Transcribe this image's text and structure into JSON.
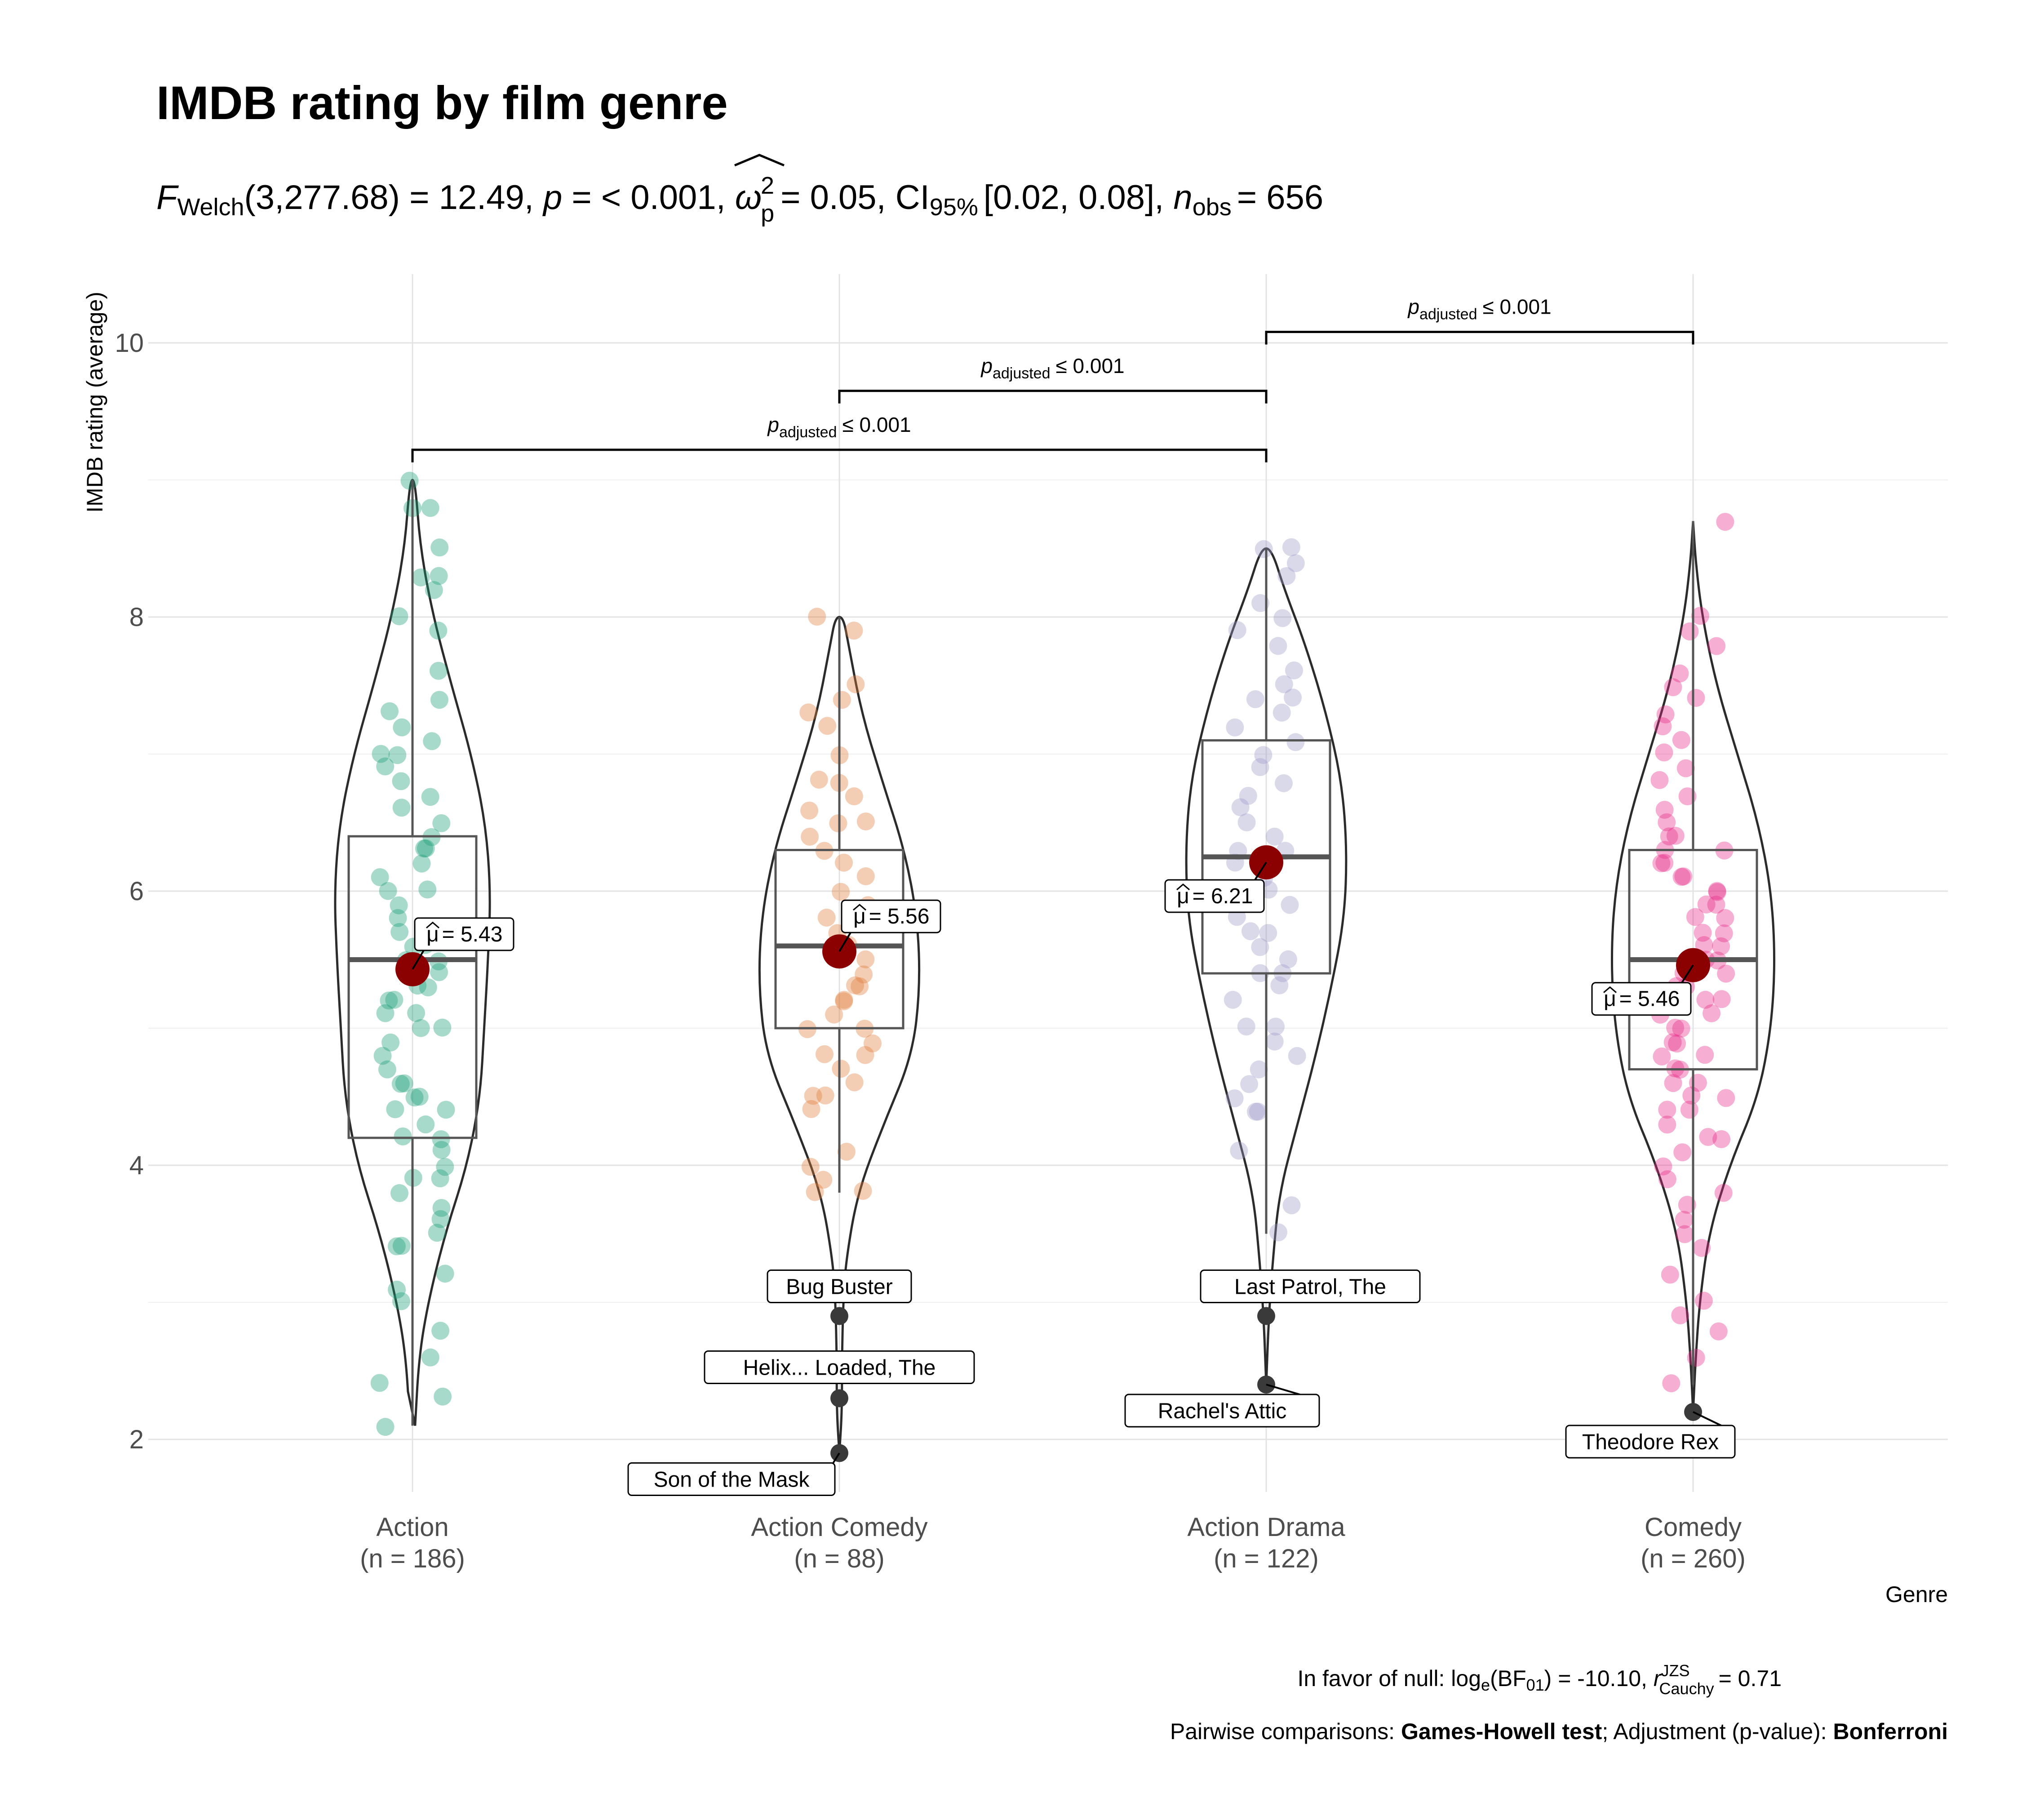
{
  "chart_data": {
    "type": "violin",
    "title": "IMDB rating by film genre",
    "subtitle": {
      "stat_symbol": "F",
      "stat_sub": "Welch",
      "stat_value": "(3,277.68) = 12.49,",
      "p_symbol": "p",
      "p_value": "= < 0.001,",
      "effect_symbol": "ω",
      "effect_sup": "2",
      "effect_sub": "p",
      "effect_value": "= 0.05, CI",
      "ci_sub": "95%",
      "ci_value": "[0.02, 0.08],",
      "n_symbol": "n",
      "n_sub": "obs",
      "n_value": "= 656"
    },
    "ylabel": "IMDB rating (average)",
    "xlabel": "Genre",
    "ylim": [
      1.5,
      10.5
    ],
    "yticks": [
      2,
      4,
      6,
      8,
      10
    ],
    "grid": true,
    "categories": [
      {
        "name": "Action",
        "n_label": "(n = 186)",
        "color": "#1B9E77",
        "mean": 5.43,
        "mean_label": "= 5.43",
        "mean_label_side": "right",
        "q1": 4.2,
        "median": 5.5,
        "q3": 6.4,
        "whisker_low": 2.1,
        "whisker_high": 9.0,
        "violin_min": 2.1,
        "violin_max": 9.0,
        "violin_profile": [
          [
            2.1,
            0.02
          ],
          [
            2.6,
            0.05
          ],
          [
            3.0,
            0.12
          ],
          [
            3.5,
            0.25
          ],
          [
            4.0,
            0.42
          ],
          [
            4.5,
            0.52
          ],
          [
            5.0,
            0.55
          ],
          [
            5.5,
            0.58
          ],
          [
            6.0,
            0.6
          ],
          [
            6.5,
            0.56
          ],
          [
            7.0,
            0.45
          ],
          [
            7.5,
            0.3
          ],
          [
            8.0,
            0.16
          ],
          [
            8.5,
            0.06
          ],
          [
            9.0,
            0.02
          ]
        ],
        "points": [
          2.1,
          2.3,
          2.4,
          2.6,
          2.8,
          3.0,
          3.1,
          3.2,
          3.4,
          3.4,
          3.5,
          3.6,
          3.7,
          3.8,
          3.9,
          3.9,
          4.0,
          4.1,
          4.2,
          4.2,
          4.3,
          4.4,
          4.4,
          4.5,
          4.5,
          4.6,
          4.6,
          4.7,
          4.8,
          4.9,
          5.0,
          5.0,
          5.1,
          5.1,
          5.2,
          5.2,
          5.3,
          5.3,
          5.4,
          5.4,
          5.5,
          5.5,
          5.6,
          5.6,
          5.7,
          5.7,
          5.8,
          5.9,
          6.0,
          6.0,
          6.1,
          6.2,
          6.3,
          6.3,
          6.4,
          6.5,
          6.6,
          6.7,
          6.8,
          6.9,
          7.0,
          7.0,
          7.1,
          7.2,
          7.3,
          7.4,
          7.6,
          7.9,
          8.0,
          8.2,
          8.3,
          8.3,
          8.5,
          8.8,
          8.8,
          9.0
        ],
        "outliers": []
      },
      {
        "name": "Action Comedy",
        "n_label": "(n = 88)",
        "color": "#E07B39",
        "mean": 5.56,
        "mean_label": "= 5.56",
        "mean_label_side": "right",
        "q1": 5.0,
        "median": 5.6,
        "q3": 6.3,
        "whisker_low": 3.8,
        "whisker_high": 8.0,
        "violin_min": 1.9,
        "violin_max": 8.0,
        "violin_profile": [
          [
            1.9,
            0.0
          ],
          [
            2.2,
            0.02
          ],
          [
            2.6,
            0.02
          ],
          [
            3.0,
            0.03
          ],
          [
            3.3,
            0.05
          ],
          [
            3.8,
            0.14
          ],
          [
            4.3,
            0.34
          ],
          [
            4.8,
            0.56
          ],
          [
            5.3,
            0.62
          ],
          [
            5.8,
            0.6
          ],
          [
            6.3,
            0.5
          ],
          [
            6.8,
            0.33
          ],
          [
            7.3,
            0.17
          ],
          [
            7.8,
            0.07
          ],
          [
            8.0,
            0.03
          ]
        ],
        "points": [
          3.8,
          3.8,
          3.9,
          4.0,
          4.1,
          4.4,
          4.5,
          4.5,
          4.6,
          4.7,
          4.8,
          4.8,
          4.9,
          5.0,
          5.0,
          5.1,
          5.2,
          5.2,
          5.3,
          5.3,
          5.4,
          5.5,
          5.6,
          5.6,
          5.7,
          5.8,
          5.9,
          6.0,
          6.1,
          6.2,
          6.3,
          6.4,
          6.5,
          6.5,
          6.6,
          6.7,
          6.8,
          6.8,
          7.0,
          7.2,
          7.3,
          7.4,
          7.5,
          7.9,
          8.0
        ],
        "outliers": [
          {
            "value": 2.9,
            "label": "Bug Buster"
          },
          {
            "value": 2.3,
            "label": "Helix... Loaded, The"
          },
          {
            "value": 1.9,
            "label": "Son of the Mask"
          }
        ]
      },
      {
        "name": "Action Drama",
        "n_label": "(n = 122)",
        "color": "#9D9AC8",
        "mean": 6.21,
        "mean_label": "= 6.21",
        "mean_label_side": "left",
        "q1": 5.4,
        "median": 6.25,
        "q3": 7.1,
        "whisker_low": 3.5,
        "whisker_high": 8.5,
        "violin_min": 2.4,
        "violin_max": 8.5,
        "violin_profile": [
          [
            2.4,
            0.0
          ],
          [
            2.9,
            0.02
          ],
          [
            3.3,
            0.05
          ],
          [
            3.8,
            0.1
          ],
          [
            4.3,
            0.24
          ],
          [
            4.8,
            0.38
          ],
          [
            5.3,
            0.5
          ],
          [
            5.8,
            0.6
          ],
          [
            6.3,
            0.62
          ],
          [
            6.8,
            0.58
          ],
          [
            7.3,
            0.46
          ],
          [
            7.8,
            0.3
          ],
          [
            8.2,
            0.14
          ],
          [
            8.5,
            0.04
          ]
        ],
        "points": [
          3.5,
          3.7,
          4.1,
          4.4,
          4.4,
          4.5,
          4.6,
          4.7,
          4.8,
          4.9,
          5.0,
          5.0,
          5.2,
          5.3,
          5.4,
          5.4,
          5.5,
          5.6,
          5.7,
          5.7,
          5.8,
          5.9,
          6.0,
          6.1,
          6.2,
          6.3,
          6.3,
          6.4,
          6.5,
          6.6,
          6.7,
          6.8,
          6.9,
          7.0,
          7.1,
          7.2,
          7.3,
          7.4,
          7.4,
          7.5,
          7.6,
          7.8,
          7.9,
          8.0,
          8.1,
          8.3,
          8.4,
          8.5,
          8.5
        ],
        "outliers": [
          {
            "value": 2.9,
            "label": "Last Patrol, The"
          },
          {
            "value": 2.4,
            "label": "Rachel's Attic"
          }
        ]
      },
      {
        "name": "Comedy",
        "n_label": "(n = 260)",
        "color": "#E7298A",
        "mean": 5.46,
        "mean_label": "= 5.46",
        "mean_label_side": "left",
        "q1": 4.7,
        "median": 5.5,
        "q3": 6.3,
        "whisker_low": 2.4,
        "whisker_high": 8.7,
        "violin_min": 2.2,
        "violin_max": 8.7,
        "violin_profile": [
          [
            2.2,
            0.0
          ],
          [
            2.6,
            0.02
          ],
          [
            3.0,
            0.05
          ],
          [
            3.5,
            0.12
          ],
          [
            4.0,
            0.28
          ],
          [
            4.5,
            0.5
          ],
          [
            5.0,
            0.6
          ],
          [
            5.5,
            0.63
          ],
          [
            6.0,
            0.6
          ],
          [
            6.5,
            0.5
          ],
          [
            7.0,
            0.34
          ],
          [
            7.5,
            0.18
          ],
          [
            8.0,
            0.07
          ],
          [
            8.4,
            0.02
          ],
          [
            8.7,
            0.0
          ]
        ],
        "points": [
          2.4,
          2.6,
          2.8,
          2.9,
          3.0,
          3.2,
          3.4,
          3.5,
          3.6,
          3.7,
          3.8,
          3.9,
          4.0,
          4.1,
          4.2,
          4.2,
          4.3,
          4.4,
          4.4,
          4.5,
          4.5,
          4.6,
          4.6,
          4.7,
          4.7,
          4.8,
          4.8,
          4.9,
          4.9,
          5.0,
          5.0,
          5.1,
          5.1,
          5.2,
          5.2,
          5.3,
          5.3,
          5.4,
          5.4,
          5.5,
          5.5,
          5.6,
          5.6,
          5.7,
          5.7,
          5.8,
          5.8,
          5.9,
          5.9,
          6.0,
          6.0,
          6.1,
          6.1,
          6.2,
          6.2,
          6.3,
          6.3,
          6.4,
          6.4,
          6.5,
          6.6,
          6.7,
          6.8,
          6.9,
          7.0,
          7.1,
          7.2,
          7.3,
          7.4,
          7.5,
          7.6,
          7.8,
          7.9,
          8.0,
          8.7
        ],
        "outliers": [
          {
            "value": 2.2,
            "label": "Theodore Rex"
          }
        ]
      }
    ],
    "mean_color": "#8B0000",
    "comparisons": [
      {
        "from": 0,
        "to": 2,
        "y": 9.22,
        "label_symbol": "p",
        "label_sub": "adjusted",
        "label_value": "≤ 0.001"
      },
      {
        "from": 1,
        "to": 2,
        "y": 9.65,
        "label_symbol": "p",
        "label_sub": "adjusted",
        "label_value": "≤ 0.001"
      },
      {
        "from": 2,
        "to": 3,
        "y": 10.08,
        "label_symbol": "p",
        "label_sub": "adjusted",
        "label_value": "≤ 0.001"
      }
    ],
    "caption": {
      "bf_prefix": "In favor of null: log",
      "bf_sub": "e",
      "bf_mid": "(BF",
      "bf_sub2": "01",
      "bf_value": ") = -10.10,",
      "r_symbol": "r",
      "r_sup": "JZS",
      "r_sub": "Cauchy",
      "r_value": "= 0.71",
      "pair_prefix": "Pairwise comparisons: ",
      "pair_test": "Games-Howell test",
      "pair_mid": "; Adjustment (p-value): ",
      "pair_adjust": "Bonferroni"
    }
  }
}
